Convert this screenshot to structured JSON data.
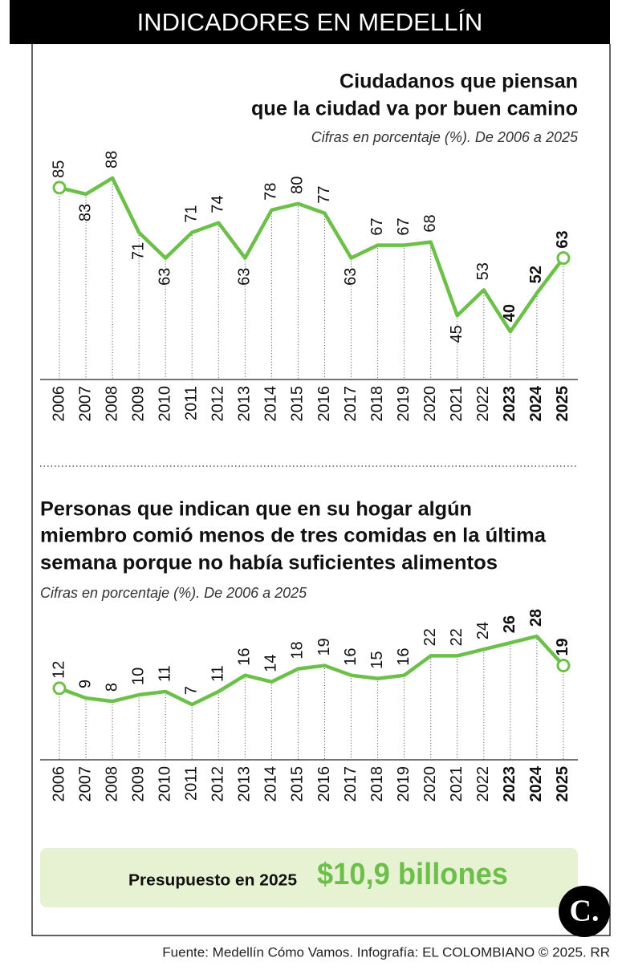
{
  "header": {
    "title": "INDICADORES EN MEDELLÍN"
  },
  "chart_data": [
    {
      "type": "line",
      "title": [
        "Ciudadanos que piensan",
        "que la ciudad va por buen camino"
      ],
      "subtitle": "Cifras en porcentaje (%). De 2006 a 2025",
      "categories": [
        "2006",
        "2007",
        "2008",
        "2009",
        "2010",
        "2011",
        "2012",
        "2013",
        "2014",
        "2015",
        "2016",
        "2017",
        "2018",
        "2019",
        "2020",
        "2021",
        "2022",
        "2023",
        "2024",
        "2025"
      ],
      "values": [
        85,
        83,
        88,
        71,
        63,
        71,
        74,
        63,
        78,
        80,
        77,
        63,
        67,
        67,
        68,
        45,
        53,
        40,
        52,
        63
      ],
      "color": "#6cc04a",
      "ylim": [
        25,
        90
      ]
    },
    {
      "type": "line",
      "title": [
        "Personas que indican que en su hogar algún",
        "miembro comió menos de tres comidas en la última",
        "semana porque no había suficientes alimentos"
      ],
      "subtitle": "Cifras en porcentaje (%). De 2006 a 2025",
      "categories": [
        "2006",
        "2007",
        "2008",
        "2009",
        "2010",
        "2011",
        "2012",
        "2013",
        "2014",
        "2015",
        "2016",
        "2017",
        "2018",
        "2019",
        "2020",
        "2021",
        "2022",
        "2023",
        "2024",
        "2025"
      ],
      "values": [
        12,
        9,
        8,
        10,
        11,
        7,
        11,
        16,
        14,
        18,
        19,
        16,
        15,
        16,
        22,
        22,
        24,
        26,
        28,
        19
      ],
      "color": "#6cc04a",
      "ylim": [
        -10,
        30
      ]
    }
  ],
  "budget": {
    "label": "Presupuesto en 2025",
    "value": "$10,9 billones"
  },
  "footer": {
    "source": "Fuente: Medellín Cómo Vamos. Infografía: EL COLOMBIANO © 2025. RR"
  },
  "logo": {
    "text": "C."
  }
}
